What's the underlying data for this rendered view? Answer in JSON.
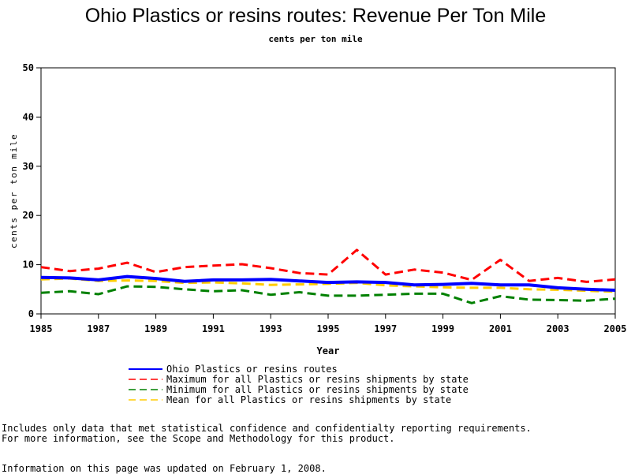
{
  "page": {
    "title": "Ohio Plastics or resins routes: Revenue Per Ton Mile",
    "subtitle": "cents per ton mile",
    "notes": [
      "Includes only data that met statistical confidence and confidentialty reporting requirements.",
      "For more information, see the Scope and Methodology for this product."
    ],
    "updated": "Information on this page was updated on February 1, 2008."
  },
  "chart_data": {
    "type": "line",
    "title": "Ohio Plastics or resins routes: Revenue Per Ton Mile",
    "subtitle": "cents per ton mile",
    "xlabel": "Year",
    "ylabel": "cents per ton mile",
    "xlim": [
      1985,
      2005
    ],
    "ylim": [
      0,
      50
    ],
    "x_ticks": [
      1985,
      1987,
      1989,
      1991,
      1993,
      1995,
      1997,
      1999,
      2001,
      2003,
      2005
    ],
    "y_ticks": [
      0,
      10,
      20,
      30,
      40,
      50
    ],
    "grid": false,
    "legend_position": "bottom",
    "x": [
      1985,
      1986,
      1987,
      1988,
      1989,
      1990,
      1991,
      1992,
      1993,
      1994,
      1995,
      1996,
      1997,
      1998,
      1999,
      2000,
      2001,
      2002,
      2003,
      2004,
      2005
    ],
    "series": [
      {
        "name": "Ohio Plastics or resins routes",
        "color": "#0000ff",
        "style": "solid",
        "values": [
          7.4,
          7.3,
          6.9,
          7.6,
          7.2,
          6.6,
          6.9,
          6.9,
          7.0,
          6.7,
          6.4,
          6.5,
          6.4,
          5.9,
          6.0,
          6.2,
          5.9,
          5.9,
          5.3,
          5.0,
          4.8
        ]
      },
      {
        "name": "Maximum for all Plastics or resins shipments by state",
        "color": "#ff0000",
        "style": "dashed",
        "values": [
          9.5,
          8.7,
          9.2,
          10.4,
          8.5,
          9.5,
          9.8,
          10.1,
          9.3,
          8.3,
          8.0,
          13.0,
          8.0,
          9.0,
          8.4,
          6.9,
          11.0,
          6.7,
          7.3,
          6.5,
          7.0
        ]
      },
      {
        "name": "Minimum for all Plastics or resins shipments by state",
        "color": "#008000",
        "style": "dashed",
        "values": [
          4.3,
          4.6,
          4.0,
          5.6,
          5.5,
          5.0,
          4.6,
          4.8,
          3.9,
          4.4,
          3.7,
          3.7,
          3.9,
          4.1,
          4.1,
          2.2,
          3.6,
          2.9,
          2.8,
          2.7,
          3.1
        ]
      },
      {
        "name": "Mean for all Plastics or resins shipments by state",
        "color": "#ffcc00",
        "style": "dashed",
        "values": [
          7.0,
          7.2,
          6.7,
          6.8,
          6.7,
          6.3,
          6.4,
          6.2,
          5.9,
          6.0,
          6.1,
          6.3,
          5.8,
          5.6,
          5.4,
          5.3,
          5.3,
          5.0,
          4.9,
          4.7,
          4.5
        ]
      }
    ]
  }
}
